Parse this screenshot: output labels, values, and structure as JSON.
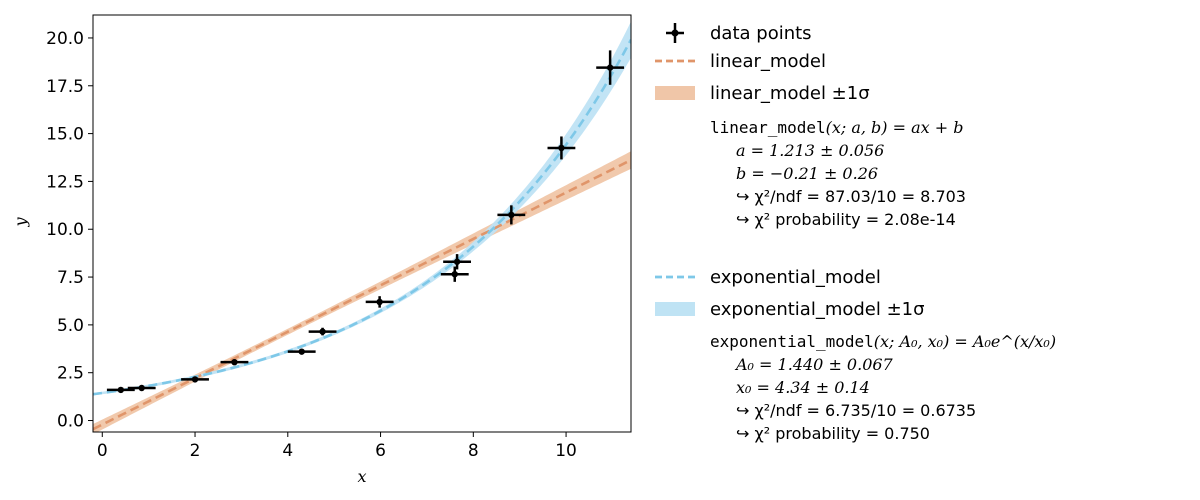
{
  "chart_data": {
    "type": "scatter",
    "xlabel": "x",
    "ylabel": "y",
    "xlim": [
      -0.2,
      11.4
    ],
    "ylim": [
      -0.6,
      21.2
    ],
    "xticks": [
      0,
      2,
      4,
      6,
      8,
      10
    ],
    "xtick_labels": [
      "0",
      "2",
      "4",
      "6",
      "8",
      "10"
    ],
    "yticks": [
      0.0,
      2.5,
      5.0,
      7.5,
      10.0,
      12.5,
      15.0,
      17.5,
      20.0
    ],
    "ytick_labels": [
      "0.0",
      "2.5",
      "5.0",
      "7.5",
      "10.0",
      "12.5",
      "15.0",
      "17.5",
      "20.0"
    ],
    "grid": false,
    "legend_position": "outside-right",
    "data_points": {
      "name": "data points",
      "color": "#000000",
      "points": [
        {
          "x": 0.4,
          "y": 1.6,
          "xerr": 0.3,
          "yerr": 0.1
        },
        {
          "x": 0.85,
          "y": 1.7,
          "xerr": 0.3,
          "yerr": 0.1
        },
        {
          "x": 2.0,
          "y": 2.15,
          "xerr": 0.3,
          "yerr": 0.1
        },
        {
          "x": 2.85,
          "y": 3.05,
          "xerr": 0.3,
          "yerr": 0.15
        },
        {
          "x": 4.3,
          "y": 3.6,
          "xerr": 0.3,
          "yerr": 0.1
        },
        {
          "x": 4.75,
          "y": 4.65,
          "xerr": 0.3,
          "yerr": 0.2
        },
        {
          "x": 5.98,
          "y": 6.2,
          "xerr": 0.3,
          "yerr": 0.3
        },
        {
          "x": 7.6,
          "y": 7.65,
          "xerr": 0.3,
          "yerr": 0.4
        },
        {
          "x": 7.65,
          "y": 8.3,
          "xerr": 0.3,
          "yerr": 0.4
        },
        {
          "x": 8.82,
          "y": 10.75,
          "xerr": 0.3,
          "yerr": 0.5
        },
        {
          "x": 9.9,
          "y": 14.25,
          "xerr": 0.3,
          "yerr": 0.6
        },
        {
          "x": 10.95,
          "y": 18.45,
          "xerr": 0.3,
          "yerr": 0.9
        }
      ]
    },
    "series": [
      {
        "name": "linear_model",
        "color": "#e0956a",
        "band_color": "#f0c6a8",
        "model": "linear",
        "params": {
          "a": 1.213,
          "b": -0.21
        },
        "param_errors": {
          "a": 0.056,
          "b": 0.26
        }
      },
      {
        "name": "exponential_model",
        "color": "#7ec8e8",
        "band_color": "#bfe3f4",
        "model": "exponential",
        "params": {
          "A0": 1.44,
          "x0": 4.34
        },
        "param_errors": {
          "A0": 0.067,
          "x0": 0.14
        }
      }
    ]
  },
  "legend": {
    "data_points_label": "data points",
    "linear_label": "linear_model",
    "linear_band_label": "linear_model ±1σ",
    "linear_formula_name": "linear_model",
    "linear_formula_args": "(x; a, b) = ax + b",
    "linear_param_a": "a  =  1.213 ± 0.056",
    "linear_param_b": "b  =  −0.21 ± 0.26",
    "linear_chi2": "↪ χ²/ndf = 87.03/10 = 8.703",
    "linear_prob": "↪ χ² probability = 2.08e-14",
    "exp_label": "exponential_model",
    "exp_band_label": "exponential_model ±1σ",
    "exp_formula_name": "exponential_model",
    "exp_formula_args": "(x; A₀, x₀) = A₀e^(x/x₀)",
    "exp_param_A0": "A₀  =  1.440 ± 0.067",
    "exp_param_x0": "x₀  =  4.34 ± 0.14",
    "exp_chi2": "↪ χ²/ndf = 6.735/10 = 0.6735",
    "exp_prob": "↪ χ² probability = 0.750"
  }
}
